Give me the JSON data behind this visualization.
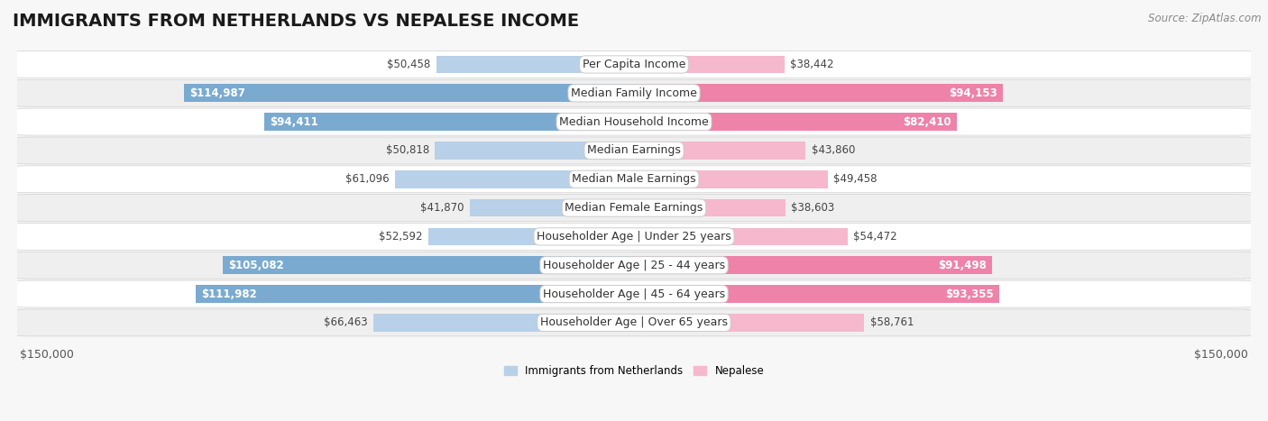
{
  "title": "IMMIGRANTS FROM NETHERLANDS VS NEPALESE INCOME",
  "source": "Source: ZipAtlas.com",
  "categories": [
    "Per Capita Income",
    "Median Family Income",
    "Median Household Income",
    "Median Earnings",
    "Median Male Earnings",
    "Median Female Earnings",
    "Householder Age | Under 25 years",
    "Householder Age | 25 - 44 years",
    "Householder Age | 45 - 64 years",
    "Householder Age | Over 65 years"
  ],
  "netherlands_values": [
    50458,
    114987,
    94411,
    50818,
    61096,
    41870,
    52592,
    105082,
    111982,
    66463
  ],
  "nepalese_values": [
    38442,
    94153,
    82410,
    43860,
    49458,
    38603,
    54472,
    91498,
    93355,
    58761
  ],
  "netherlands_labels": [
    "$50,458",
    "$114,987",
    "$94,411",
    "$50,818",
    "$61,096",
    "$41,870",
    "$52,592",
    "$105,082",
    "$111,982",
    "$66,463"
  ],
  "nepalese_labels": [
    "$38,442",
    "$94,153",
    "$82,410",
    "$43,860",
    "$49,458",
    "$38,603",
    "$54,472",
    "$91,498",
    "$93,355",
    "$58,761"
  ],
  "netherlands_color_light": "#b8d0e8",
  "netherlands_color_medium": "#7aaad0",
  "nepalese_color_light": "#f5b8cc",
  "nepalese_color_medium": "#ee82a8",
  "large_threshold": 75000,
  "max_value": 150000,
  "bar_height": 0.62,
  "bg_color": "#f7f7f7",
  "legend_netherlands": "Immigrants from Netherlands",
  "legend_nepalese": "Nepalese",
  "title_fontsize": 14,
  "label_fontsize": 8.5,
  "cat_fontsize": 9,
  "axis_label_fontsize": 9,
  "source_fontsize": 8.5
}
